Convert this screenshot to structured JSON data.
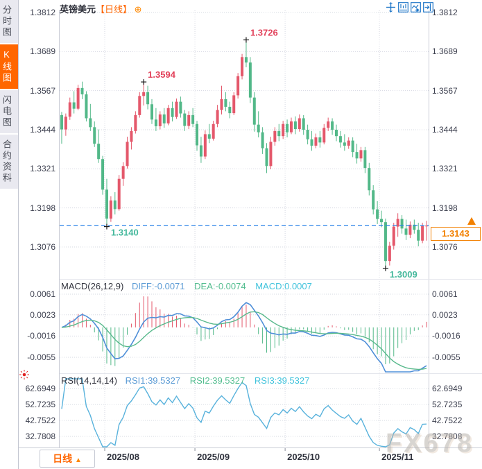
{
  "app": {
    "watermark": "FX678"
  },
  "sidebar": {
    "items": [
      {
        "label": "分时图",
        "active": false
      },
      {
        "label": "K线图",
        "active": true
      },
      {
        "label": "闪电图",
        "active": false
      },
      {
        "label": "合约资料",
        "active": false
      }
    ]
  },
  "header": {
    "title": "英镑美元",
    "period_tag": "【日线】",
    "expand_icon": "⊕"
  },
  "toolbar": {
    "icons": [
      "crosshair",
      "fit-range",
      "go-latest",
      "exit"
    ]
  },
  "main_chart": {
    "y_ticks": [
      "1.3812",
      "1.3689",
      "1.3567",
      "1.3444",
      "1.3321",
      "1.3198",
      "1.3076"
    ],
    "current_price": "1.3143"
  },
  "macd_panel": {
    "title": "MACD(26,12,9)",
    "diff_label": "DIFF:-0.0071",
    "dea_label": "DEA:-0.0074",
    "macd_label": "MACD:0.0007",
    "y_ticks": [
      "0.0061",
      "0.0023",
      "-0.0016",
      "-0.0055"
    ]
  },
  "rsi_panel": {
    "title": "RSI(14,14,14)",
    "rsi1_label": "RSI1:39.5327",
    "rsi2_label": "RSI2:39.5327",
    "rsi3_label": "RSI3:39.5327",
    "y_ticks": [
      "62.6949",
      "52.7235",
      "42.7522",
      "32.7808"
    ]
  },
  "bottom_bar": {
    "period_button": "日线",
    "period_arrow": "▲"
  },
  "chart_data": {
    "type": "candlestick",
    "symbol": "英镑美元",
    "period": "日线",
    "title": "英镑美元【日线】",
    "price_axis": {
      "ticks": [
        1.3812,
        1.3689,
        1.3567,
        1.3444,
        1.3321,
        1.3198,
        1.3076
      ]
    },
    "current_price": 1.3143,
    "month_ticks": [
      {
        "index": 11,
        "label": "2025/08"
      },
      {
        "index": 33,
        "label": "2025/09"
      },
      {
        "index": 55,
        "label": "2025/10"
      },
      {
        "index": 78,
        "label": "2025/11"
      }
    ],
    "annotations": [
      {
        "index": 11,
        "price": 1.314,
        "text": "1.3140",
        "kind": "low"
      },
      {
        "index": 20,
        "price": 1.3594,
        "text": "1.3594",
        "kind": "high"
      },
      {
        "index": 45,
        "price": 1.3726,
        "text": "1.3726",
        "kind": "high"
      },
      {
        "index": 79,
        "price": 1.3009,
        "text": "1.3009",
        "kind": "low"
      }
    ],
    "candles": [
      [
        1.349,
        1.35,
        1.34,
        1.3445
      ],
      [
        1.3445,
        1.3495,
        1.3425,
        1.3485
      ],
      [
        1.3485,
        1.3545,
        1.3475,
        1.353
      ],
      [
        1.353,
        1.3565,
        1.3495,
        1.351
      ],
      [
        1.351,
        1.3585,
        1.3505,
        1.3575
      ],
      [
        1.3575,
        1.3595,
        1.354,
        1.3555
      ],
      [
        1.3555,
        1.3565,
        1.347,
        1.348
      ],
      [
        1.348,
        1.3525,
        1.344,
        1.3452
      ],
      [
        1.3452,
        1.347,
        1.339,
        1.34
      ],
      [
        1.34,
        1.3445,
        1.334,
        1.3352
      ],
      [
        1.3352,
        1.3362,
        1.324,
        1.3256
      ],
      [
        1.3256,
        1.329,
        1.314,
        1.3165
      ],
      [
        1.3165,
        1.3235,
        1.3155,
        1.3222
      ],
      [
        1.3222,
        1.3248,
        1.3178,
        1.3195
      ],
      [
        1.3195,
        1.3302,
        1.319,
        1.329
      ],
      [
        1.329,
        1.3342,
        1.3268,
        1.333
      ],
      [
        1.333,
        1.3422,
        1.3322,
        1.3406
      ],
      [
        1.3406,
        1.3452,
        1.3382,
        1.344
      ],
      [
        1.344,
        1.3502,
        1.3432,
        1.349
      ],
      [
        1.349,
        1.3562,
        1.3482,
        1.355
      ],
      [
        1.355,
        1.3594,
        1.352,
        1.3562
      ],
      [
        1.3562,
        1.3582,
        1.3508,
        1.3524
      ],
      [
        1.3524,
        1.354,
        1.3462,
        1.3476
      ],
      [
        1.3476,
        1.3512,
        1.344,
        1.3455
      ],
      [
        1.3455,
        1.3502,
        1.3445,
        1.3492
      ],
      [
        1.3492,
        1.3512,
        1.345,
        1.3464
      ],
      [
        1.3464,
        1.3522,
        1.3458,
        1.3512
      ],
      [
        1.3512,
        1.3532,
        1.347,
        1.3484
      ],
      [
        1.3484,
        1.3542,
        1.3478,
        1.3532
      ],
      [
        1.3532,
        1.3548,
        1.3482,
        1.3495
      ],
      [
        1.3495,
        1.3506,
        1.344,
        1.3456
      ],
      [
        1.3456,
        1.3502,
        1.3446,
        1.349
      ],
      [
        1.349,
        1.3512,
        1.3452,
        1.3462
      ],
      [
        1.3462,
        1.3472,
        1.3378,
        1.3395
      ],
      [
        1.3395,
        1.3422,
        1.334,
        1.336
      ],
      [
        1.336,
        1.3442,
        1.3352,
        1.343
      ],
      [
        1.343,
        1.3462,
        1.3402,
        1.3416
      ],
      [
        1.3416,
        1.3472,
        1.341,
        1.3462
      ],
      [
        1.3462,
        1.3522,
        1.3452,
        1.3506
      ],
      [
        1.3506,
        1.3582,
        1.3492,
        1.354
      ],
      [
        1.354,
        1.3562,
        1.3502,
        1.3516
      ],
      [
        1.3516,
        1.3532,
        1.348,
        1.3496
      ],
      [
        1.3496,
        1.3562,
        1.349,
        1.3552
      ],
      [
        1.3552,
        1.3622,
        1.3542,
        1.3612
      ],
      [
        1.3612,
        1.3682,
        1.3602,
        1.3672
      ],
      [
        1.3672,
        1.3726,
        1.364,
        1.3655
      ],
      [
        1.3655,
        1.3672,
        1.3528,
        1.3545
      ],
      [
        1.3545,
        1.3562,
        1.3438,
        1.346
      ],
      [
        1.346,
        1.3502,
        1.342,
        1.3436
      ],
      [
        1.3436,
        1.3452,
        1.3368,
        1.3386
      ],
      [
        1.3386,
        1.3402,
        1.3308,
        1.333
      ],
      [
        1.333,
        1.3422,
        1.332,
        1.3406
      ],
      [
        1.3406,
        1.3452,
        1.3394,
        1.344
      ],
      [
        1.344,
        1.3462,
        1.3408,
        1.3424
      ],
      [
        1.3424,
        1.3472,
        1.3415,
        1.3462
      ],
      [
        1.3462,
        1.3476,
        1.342,
        1.3436
      ],
      [
        1.3436,
        1.3482,
        1.343,
        1.347
      ],
      [
        1.347,
        1.3486,
        1.343,
        1.3446
      ],
      [
        1.3446,
        1.3492,
        1.3438,
        1.348
      ],
      [
        1.348,
        1.349,
        1.3428,
        1.3444
      ],
      [
        1.3444,
        1.346,
        1.3398,
        1.3414
      ],
      [
        1.3414,
        1.344,
        1.3378,
        1.3394
      ],
      [
        1.3394,
        1.3432,
        1.3386,
        1.342
      ],
      [
        1.342,
        1.344,
        1.3388,
        1.3404
      ],
      [
        1.3404,
        1.3462,
        1.3398,
        1.345
      ],
      [
        1.345,
        1.3482,
        1.344,
        1.347
      ],
      [
        1.347,
        1.348,
        1.3428,
        1.3444
      ],
      [
        1.3444,
        1.346,
        1.3408,
        1.3424
      ],
      [
        1.3424,
        1.344,
        1.3388,
        1.3404
      ],
      [
        1.3404,
        1.343,
        1.3378,
        1.3394
      ],
      [
        1.3394,
        1.342,
        1.3384,
        1.341
      ],
      [
        1.341,
        1.342,
        1.3358,
        1.3374
      ],
      [
        1.3374,
        1.34,
        1.3338,
        1.3354
      ],
      [
        1.3354,
        1.339,
        1.3344,
        1.338
      ],
      [
        1.338,
        1.339,
        1.3308,
        1.3324
      ],
      [
        1.3324,
        1.334,
        1.3238,
        1.3254
      ],
      [
        1.3254,
        1.327,
        1.3178,
        1.3194
      ],
      [
        1.3194,
        1.322,
        1.3148,
        1.3164
      ],
      [
        1.3164,
        1.319,
        1.3138,
        1.3154
      ],
      [
        1.3154,
        1.3165,
        1.3009,
        1.3032
      ],
      [
        1.3032,
        1.3092,
        1.3018,
        1.308
      ],
      [
        1.308,
        1.3152,
        1.3068,
        1.314
      ],
      [
        1.314,
        1.3182,
        1.3108,
        1.3164
      ],
      [
        1.3164,
        1.3176,
        1.3118,
        1.3134
      ],
      [
        1.3134,
        1.3162,
        1.3098,
        1.3114
      ],
      [
        1.3114,
        1.3156,
        1.3104,
        1.3146
      ],
      [
        1.3146,
        1.3162,
        1.3118,
        1.313
      ],
      [
        1.313,
        1.3152,
        1.3078,
        1.3096
      ],
      [
        1.3096,
        1.3152,
        1.3088,
        1.3142
      ],
      [
        1.3142,
        1.3158,
        1.3096,
        1.3143
      ]
    ],
    "indicators": {
      "macd": {
        "params": [
          26,
          12,
          9
        ],
        "diff": -0.0071,
        "dea": -0.0074,
        "macd": 0.0007,
        "axis": [
          0.0061,
          0.0023,
          -0.0016,
          -0.0055
        ]
      },
      "rsi": {
        "params": [
          14,
          14,
          14
        ],
        "rsi1": 39.5327,
        "rsi2": 39.5327,
        "rsi3": 39.5327,
        "axis": [
          62.6949,
          52.7235,
          42.7522,
          32.7808
        ]
      }
    },
    "colors": {
      "up": "#e4586b",
      "down": "#52b888",
      "diff_line": "#4f8fd8",
      "dea_line": "#58b98c",
      "rsi_line": "#58b2dc",
      "current_line": "#2b83e8",
      "annotation_high": "#e2415a",
      "annotation_low": "#44b89c",
      "accent": "#ff6600",
      "tag": "#f28000",
      "grid": "#d6d8e2"
    }
  }
}
